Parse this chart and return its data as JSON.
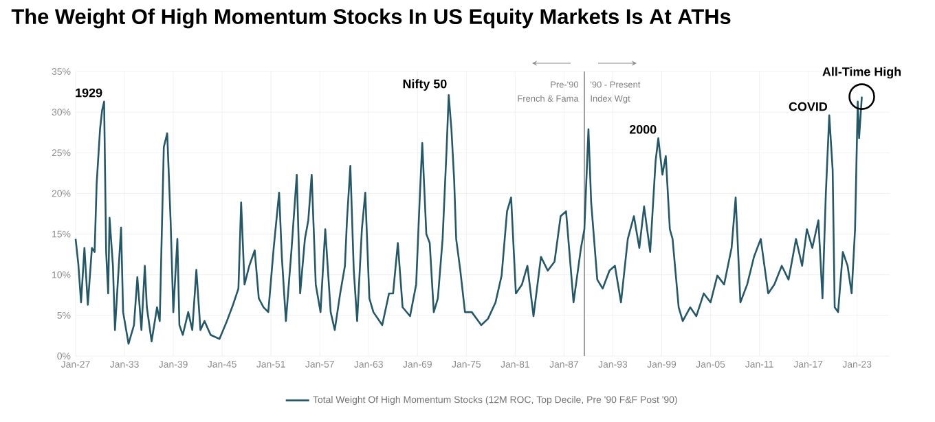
{
  "chart_data": {
    "type": "line",
    "title": "The Weight Of High Momentum Stocks In US Equity Markets Is At ATHs",
    "x": [
      "1927-01",
      "1927-05",
      "1927-09",
      "1928-02",
      "1928-07",
      "1929-01",
      "1929-05",
      "1929-08",
      "1930-01",
      "1930-04",
      "1930-07",
      "1930-10",
      "1931-01",
      "1931-03",
      "1931-08",
      "1931-11",
      "1932-03",
      "1932-08",
      "1932-11",
      "1933-07",
      "1934-03",
      "1934-08",
      "1935-02",
      "1935-07",
      "1935-10",
      "1936-05",
      "1937-01",
      "1937-05",
      "1937-11",
      "1938-04",
      "1938-09",
      "1939-01",
      "1939-07",
      "1939-10",
      "1940-03",
      "1940-11",
      "1941-05",
      "1941-11",
      "1942-05",
      "1942-11",
      "1943-08",
      "1944-09",
      "1945-08",
      "1946-05",
      "1947-01",
      "1947-05",
      "1947-10",
      "1948-05",
      "1949-01",
      "1949-07",
      "1950-02",
      "1950-09",
      "1951-05",
      "1952-01",
      "1952-05",
      "1952-11",
      "1953-07",
      "1954-03",
      "1954-08",
      "1955-03",
      "1955-08",
      "1956-01",
      "1956-07",
      "1957-02",
      "1957-09",
      "1958-05",
      "1958-11",
      "1959-07",
      "1960-02",
      "1960-05",
      "1960-10",
      "1961-03",
      "1961-08",
      "1962-03",
      "1962-08",
      "1963-02",
      "1963-08",
      "1964-09",
      "1965-07",
      "1966-01",
      "1966-08",
      "1967-03",
      "1968-02",
      "1968-11",
      "1969-04",
      "1969-08",
      "1970-02",
      "1970-07",
      "1971-01",
      "1971-07",
      "1972-02",
      "1972-08",
      "1972-11",
      "1973-03",
      "1973-07",
      "1973-10",
      "1974-04",
      "1974-11",
      "1975-09",
      "1976-11",
      "1977-09",
      "1978-08",
      "1979-05",
      "1980-01",
      "1980-07",
      "1981-02",
      "1981-11",
      "1982-07",
      "1983-04",
      "1984-03",
      "1985-01",
      "1985-11",
      "1986-08",
      "1987-04",
      "1988-03",
      "1989-02",
      "1989-07",
      "1990-01",
      "1990-05",
      "1991-02",
      "1991-10",
      "1992-08",
      "1993-04",
      "1994-01",
      "1994-11",
      "1995-08",
      "1996-04",
      "1996-11",
      "1997-08",
      "1998-04",
      "1998-08",
      "1999-02",
      "1999-07",
      "2000-01",
      "2000-05",
      "2001-02",
      "2001-08",
      "2002-07",
      "2003-04",
      "2004-03",
      "2005-01",
      "2005-11",
      "2006-09",
      "2007-08",
      "2008-02",
      "2008-09",
      "2009-07",
      "2010-05",
      "2011-03",
      "2012-02",
      "2012-11",
      "2013-10",
      "2014-08",
      "2015-07",
      "2016-04",
      "2016-11",
      "2017-07",
      "2018-04",
      "2018-10",
      "2019-03",
      "2019-08",
      "2020-01",
      "2020-04",
      "2020-09",
      "2021-04",
      "2021-11",
      "2022-05",
      "2022-10",
      "2023-02",
      "2023-04",
      "2023-08"
    ],
    "series": [
      {
        "name": "Total Weight Of High Momentum Stocks (12M ROC, Top Decile, Pre '90 F&F Post '90)",
        "color": "#245868",
        "values": [
          14.4,
          11.3,
          6.6,
          13.3,
          6.3,
          13.3,
          12.8,
          21.2,
          27.9,
          30.2,
          31.3,
          12.8,
          7.7,
          17.0,
          11.1,
          3.2,
          8.8,
          15.8,
          5.4,
          1.5,
          3.8,
          9.7,
          3.2,
          11.1,
          6.0,
          1.8,
          6.0,
          4.3,
          25.7,
          27.4,
          16.7,
          5.4,
          14.4,
          3.8,
          2.6,
          5.4,
          3.2,
          10.6,
          3.2,
          4.3,
          2.6,
          2.1,
          4.3,
          6.3,
          8.3,
          18.9,
          8.8,
          11.1,
          13.0,
          7.1,
          6.0,
          5.4,
          13.3,
          20.1,
          12.2,
          4.3,
          12.8,
          22.3,
          7.7,
          14.4,
          16.7,
          22.3,
          8.8,
          5.4,
          15.6,
          5.4,
          3.2,
          7.7,
          11.1,
          16.7,
          23.4,
          10.6,
          4.3,
          15.6,
          20.1,
          7.1,
          5.4,
          3.8,
          7.7,
          7.7,
          13.9,
          6.0,
          4.9,
          8.8,
          18.9,
          26.2,
          15.0,
          13.9,
          5.4,
          7.1,
          14.4,
          25.7,
          32.1,
          27.9,
          21.7,
          14.4,
          10.6,
          5.4,
          5.4,
          3.8,
          4.6,
          6.6,
          9.9,
          17.8,
          19.5,
          7.7,
          8.8,
          11.1,
          4.9,
          12.2,
          10.5,
          11.6,
          17.2,
          17.8,
          6.6,
          13.3,
          15.6,
          27.9,
          18.9,
          9.4,
          8.3,
          10.5,
          11.1,
          6.6,
          14.4,
          17.2,
          13.3,
          18.4,
          12.8,
          24.0,
          26.8,
          22.3,
          24.6,
          15.6,
          14.4,
          6.0,
          4.3,
          6.0,
          4.9,
          7.7,
          6.6,
          9.9,
          8.8,
          13.3,
          19.5,
          6.6,
          8.8,
          12.2,
          14.4,
          7.7,
          8.8,
          11.1,
          9.4,
          14.4,
          11.1,
          15.6,
          13.3,
          16.7,
          7.1,
          20.1,
          29.6,
          22.9,
          6.0,
          5.4,
          12.8,
          11.1,
          7.7,
          15.6,
          31.3,
          26.8,
          31.9
        ]
      }
    ],
    "xlim": [
      "1927-01",
      "2027-01"
    ],
    "ylim": [
      0,
      35
    ],
    "xticks": [
      {
        "value": "1927-01",
        "label": "Jan-27"
      },
      {
        "value": "1933-01",
        "label": "Jan-33"
      },
      {
        "value": "1939-01",
        "label": "Jan-39"
      },
      {
        "value": "1945-01",
        "label": "Jan-45"
      },
      {
        "value": "1951-01",
        "label": "Jan-51"
      },
      {
        "value": "1957-01",
        "label": "Jan-57"
      },
      {
        "value": "1963-01",
        "label": "Jan-63"
      },
      {
        "value": "1969-01",
        "label": "Jan-69"
      },
      {
        "value": "1975-01",
        "label": "Jan-75"
      },
      {
        "value": "1981-01",
        "label": "Jan-81"
      },
      {
        "value": "1987-01",
        "label": "Jan-87"
      },
      {
        "value": "1993-01",
        "label": "Jan-93"
      },
      {
        "value": "1999-01",
        "label": "Jan-99"
      },
      {
        "value": "2005-01",
        "label": "Jan-05"
      },
      {
        "value": "2011-01",
        "label": "Jan-11"
      },
      {
        "value": "2017-01",
        "label": "Jan-17"
      },
      {
        "value": "2023-01",
        "label": "Jan-23"
      }
    ],
    "yticks": [
      {
        "value": 0,
        "label": "0%"
      },
      {
        "value": 5,
        "label": "5%"
      },
      {
        "value": 10,
        "label": "10%"
      },
      {
        "value": 15,
        "label": "15%"
      },
      {
        "value": 20,
        "label": "20%"
      },
      {
        "value": 25,
        "label": "25%"
      },
      {
        "value": 30,
        "label": "30%"
      },
      {
        "value": 35,
        "label": "35%"
      }
    ],
    "grid": true,
    "legend": "bottom",
    "marker": "none",
    "line_style": "solid",
    "ref_lines": [
      {
        "axis": "x",
        "value": "1989-07",
        "color": "#a0a0a0"
      }
    ],
    "annotations": [
      {
        "text": "1929",
        "x": "1930-07",
        "y": 31.3
      },
      {
        "text": "Nifty 50",
        "x": "1972-11",
        "y": 32.1
      },
      "Pre-'90",
      "French & Fama",
      "'90 - Present",
      "Index Wgt",
      {
        "text": "2000",
        "x": "1998-08",
        "y": 26.8
      },
      {
        "text": "COVID",
        "x": "2019-08",
        "y": 29.6
      },
      {
        "text": "All-Time High",
        "x": "2023-08",
        "y": 31.9
      }
    ]
  }
}
